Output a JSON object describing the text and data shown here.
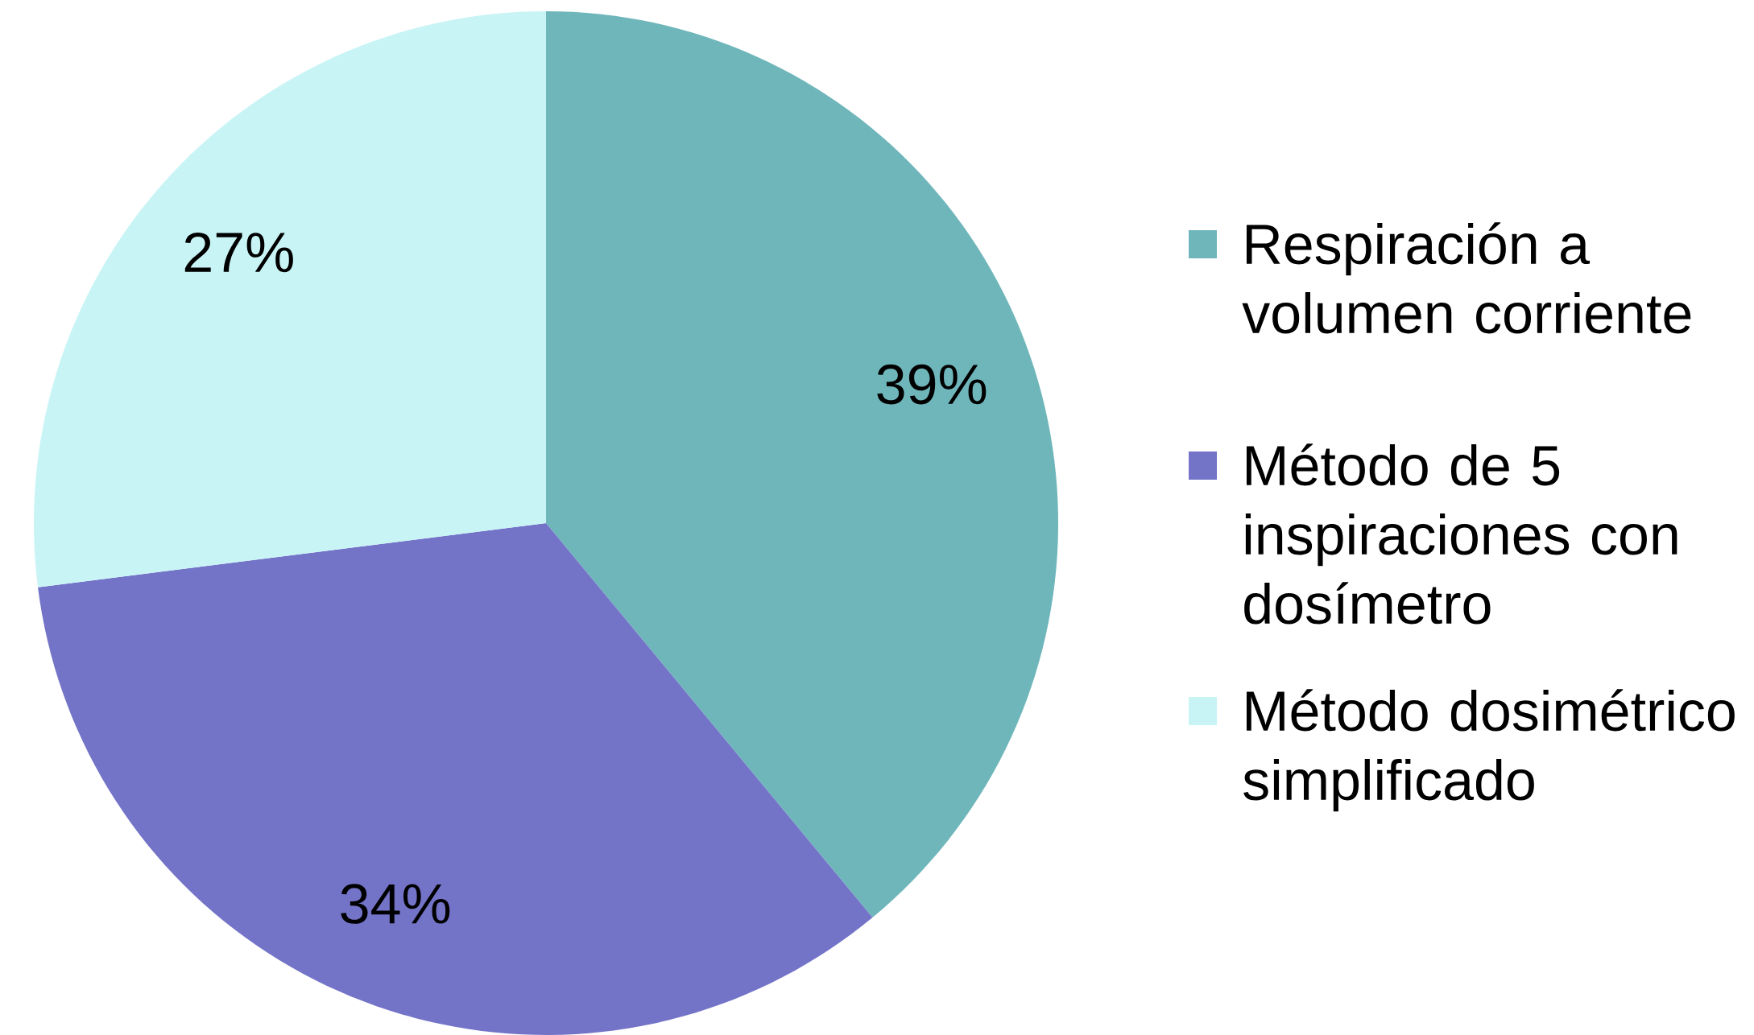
{
  "chart_data": {
    "type": "pie",
    "categories": [
      "Respiración a volumen corriente",
      "Método de 5 inspiraciones con dosímetro",
      "Método dosimétrico simplificado"
    ],
    "values": [
      39,
      34,
      27
    ],
    "value_labels": [
      "39%",
      "34%",
      "27%"
    ],
    "colors": [
      "#6fb6bb",
      "#7373c8",
      "#c9f4f6"
    ],
    "legend": "right"
  }
}
